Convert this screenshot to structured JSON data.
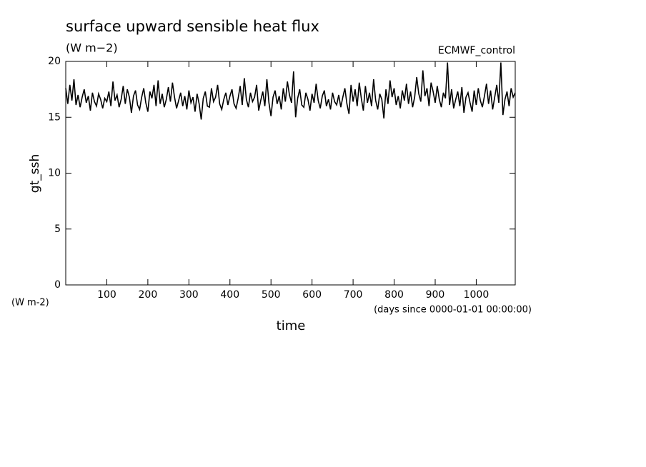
{
  "chart_data": {
    "type": "line",
    "title": "surface upward sensible heat flux",
    "subtitle": "(W m−2)",
    "annotation": "ECMWF_control",
    "ylabel": "gt_ssh",
    "yunit": "(W m-2)",
    "xlabel": "time",
    "xunit": "(days since 0000-01-01 00:00:00)",
    "color": "#000000",
    "xlim": [
      0,
      1095
    ],
    "ylim": [
      0,
      20
    ],
    "xticks": [
      100,
      200,
      300,
      400,
      500,
      600,
      700,
      800,
      900,
      1000
    ],
    "yticks": [
      0,
      5,
      10,
      15,
      20
    ],
    "x": [
      0,
      5,
      10,
      15,
      20,
      25,
      30,
      35,
      40,
      45,
      50,
      55,
      60,
      65,
      70,
      75,
      80,
      85,
      90,
      95,
      100,
      105,
      110,
      115,
      120,
      125,
      130,
      135,
      140,
      145,
      150,
      155,
      160,
      165,
      170,
      175,
      180,
      185,
      190,
      195,
      200,
      205,
      210,
      215,
      220,
      225,
      230,
      235,
      240,
      245,
      250,
      255,
      260,
      265,
      270,
      275,
      280,
      285,
      290,
      295,
      300,
      305,
      310,
      315,
      320,
      325,
      330,
      335,
      340,
      345,
      350,
      355,
      360,
      365,
      370,
      375,
      380,
      385,
      390,
      395,
      400,
      405,
      410,
      415,
      420,
      425,
      430,
      435,
      440,
      445,
      450,
      455,
      460,
      465,
      470,
      475,
      480,
      485,
      490,
      495,
      500,
      505,
      510,
      515,
      520,
      525,
      530,
      535,
      540,
      545,
      550,
      555,
      560,
      565,
      570,
      575,
      580,
      585,
      590,
      595,
      600,
      605,
      610,
      615,
      620,
      625,
      630,
      635,
      640,
      645,
      650,
      655,
      660,
      665,
      670,
      675,
      680,
      685,
      690,
      695,
      700,
      705,
      710,
      715,
      720,
      725,
      730,
      735,
      740,
      745,
      750,
      755,
      760,
      765,
      770,
      775,
      780,
      785,
      790,
      795,
      800,
      805,
      810,
      815,
      820,
      825,
      830,
      835,
      840,
      845,
      850,
      855,
      860,
      865,
      870,
      875,
      880,
      885,
      890,
      895,
      900,
      905,
      910,
      915,
      920,
      925,
      930,
      935,
      940,
      945,
      950,
      955,
      960,
      965,
      970,
      975,
      980,
      985,
      990,
      995,
      1000,
      1005,
      1010,
      1015,
      1020,
      1025,
      1030,
      1035,
      1040,
      1045,
      1050,
      1055,
      1060,
      1065,
      1070,
      1075,
      1080,
      1085,
      1090,
      1095
    ],
    "values": [
      17.6,
      16.2,
      17.9,
      16.5,
      18.4,
      16.1,
      17.0,
      15.9,
      16.8,
      17.5,
      16.3,
      16.9,
      15.6,
      17.2,
      16.4,
      16.0,
      17.1,
      16.6,
      15.8,
      16.7,
      16.4,
      17.3,
      16.0,
      18.2,
      16.5,
      17.0,
      15.9,
      16.6,
      17.8,
      16.2,
      17.5,
      16.8,
      15.4,
      16.9,
      17.4,
      16.1,
      15.7,
      16.8,
      17.6,
      16.3,
      15.5,
      17.3,
      16.7,
      17.9,
      16.0,
      18.3,
      16.2,
      17.1,
      15.9,
      16.6,
      17.7,
      16.4,
      18.1,
      16.8,
      15.8,
      16.5,
      17.2,
      16.0,
      16.9,
      15.7,
      17.4,
      16.3,
      16.8,
      15.5,
      17.1,
      16.2,
      14.8,
      16.7,
      17.3,
      16.0,
      15.9,
      17.6,
      16.4,
      16.8,
      17.9,
      16.2,
      15.7,
      16.6,
      17.2,
      16.1,
      16.9,
      17.5,
      16.2,
      15.8,
      16.7,
      17.8,
      16.1,
      18.5,
      16.6,
      15.9,
      17.2,
      16.4,
      16.8,
      17.9,
      15.6,
      16.5,
      17.3,
      16.0,
      18.4,
      16.3,
      15.1,
      16.8,
      17.4,
      16.2,
      16.9,
      15.7,
      17.6,
      16.4,
      18.2,
      17.0,
      16.3,
      19.1,
      15.0,
      16.7,
      17.5,
      16.1,
      15.9,
      17.2,
      16.6,
      15.6,
      17.1,
      16.3,
      18.0,
      16.5,
      15.8,
      16.9,
      17.4,
      16.0,
      16.6,
      15.7,
      17.2,
      16.4,
      16.1,
      17.0,
      15.9,
      16.8,
      17.6,
      16.2,
      15.3,
      17.9,
      16.4,
      17.5,
      16.0,
      18.1,
      16.7,
      15.6,
      17.8,
      16.3,
      17.2,
      16.0,
      18.4,
      16.5,
      15.7,
      17.1,
      16.6,
      14.9,
      17.5,
      16.2,
      18.3,
      16.8,
      17.6,
      16.1,
      16.9,
      15.8,
      17.4,
      16.5,
      18.0,
      16.2,
      17.3,
      15.9,
      16.8,
      18.6,
      17.1,
      16.4,
      19.2,
      16.9,
      17.6,
      16.0,
      18.1,
      17.3,
      16.3,
      17.8,
      16.6,
      15.9,
      17.2,
      16.7,
      19.9,
      16.1,
      17.5,
      15.8,
      16.6,
      17.3,
      16.0,
      17.7,
      15.4,
      16.8,
      17.2,
      16.3,
      15.5,
      17.4,
      16.1,
      17.6,
      16.5,
      15.9,
      16.9,
      18.0,
      16.2,
      17.4,
      15.7,
      16.8,
      17.9,
      16.3,
      19.9,
      15.2,
      16.6,
      17.3,
      16.0,
      17.6,
      16.8,
      17.2
    ]
  }
}
